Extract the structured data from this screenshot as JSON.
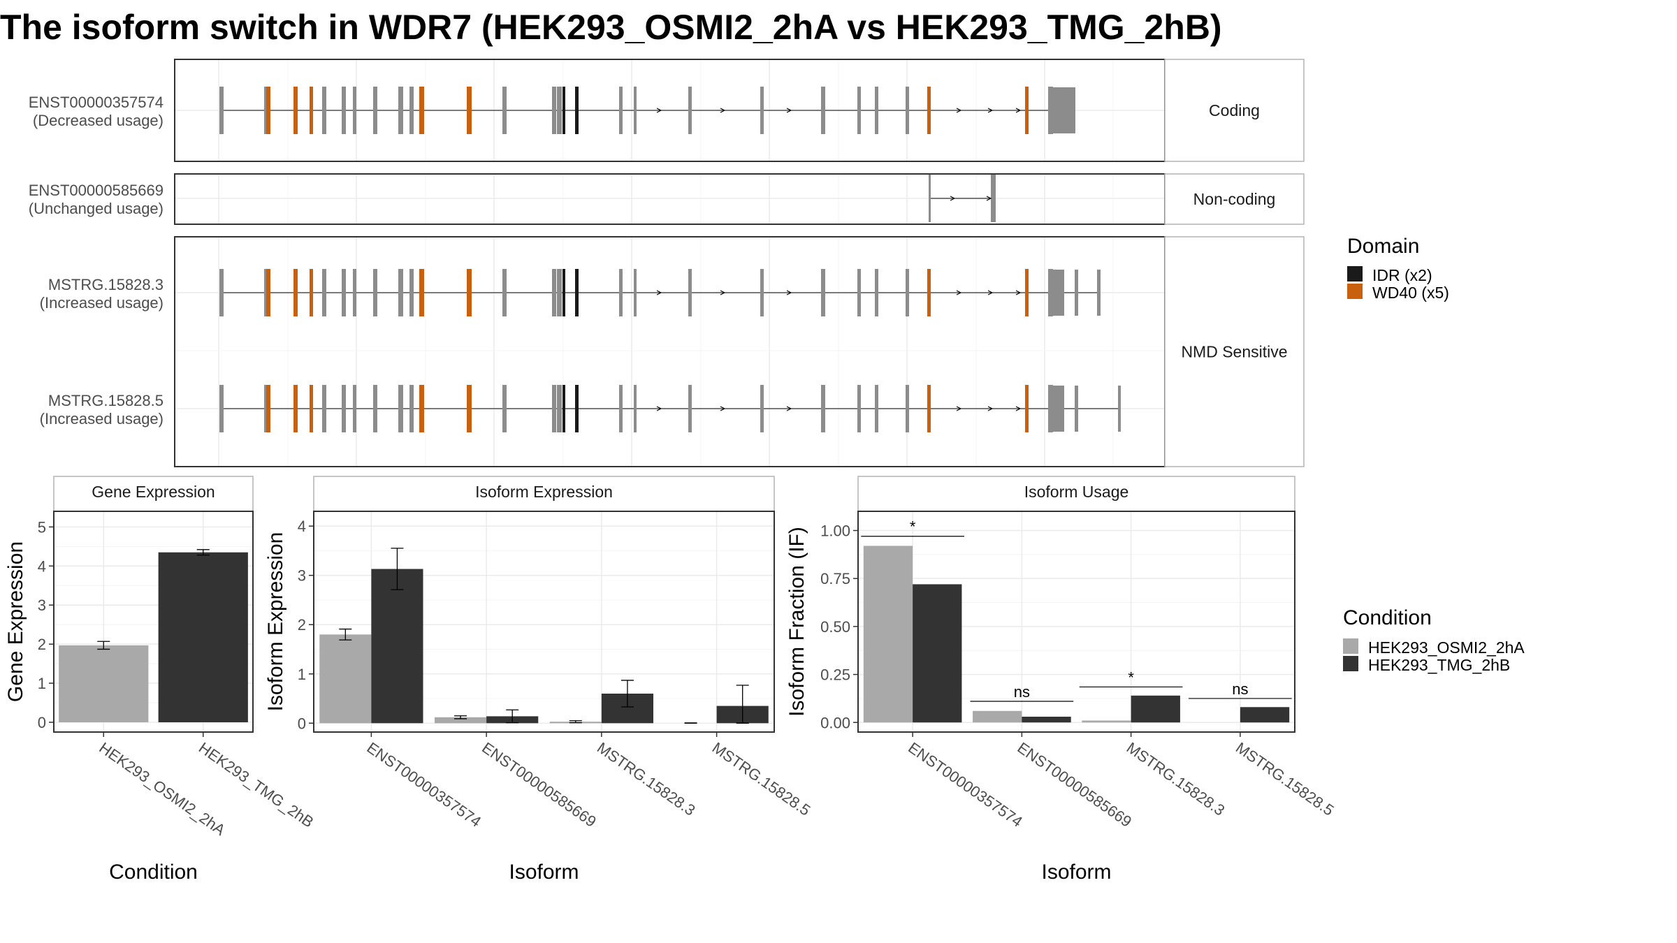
{
  "title": "The isoform switch in WDR7 (HEK293_OSMI2_2hA vs HEK293_TMG_2hB)",
  "colors": {
    "cond_a": "#A9A9A9",
    "cond_b": "#333333",
    "exon": "#8C8C8C",
    "idr": "#1A1A1A",
    "wd40": "#C8600E",
    "panel_border": "#333333",
    "strip_border": "#B3B3B3",
    "grid_major": "#EBEBEB",
    "grid_minor": "#F4F4F4",
    "axis_text": "#4D4D4D"
  },
  "legends": {
    "domain_title": "Domain",
    "domain_items": [
      {
        "label": "IDR (x2)",
        "color": "#1A1A1A"
      },
      {
        "label": "WD40 (x5)",
        "color": "#C8600E"
      }
    ],
    "condition_title": "Condition",
    "condition_items": [
      {
        "label": "HEK293_OSMI2_2hA",
        "color": "#A9A9A9"
      },
      {
        "label": "HEK293_TMG_2hB",
        "color": "#333333"
      }
    ]
  },
  "structure": {
    "groups": [
      {
        "label": "Coding",
        "isoforms": [
          {
            "id": "ENST00000357574",
            "note": "(Decreased usage)",
            "variant": "full",
            "tail": "coding"
          }
        ]
      },
      {
        "label": "Non-coding",
        "isoforms": [
          {
            "id": "ENST00000585669",
            "note": "(Unchanged usage)",
            "variant": "short"
          }
        ]
      },
      {
        "label": "NMD Sensitive",
        "isoforms": [
          {
            "id": "MSTRG.15828.3",
            "note": "(Increased usage)",
            "variant": "full",
            "tail": "nmd3"
          },
          {
            "id": "MSTRG.15828.5",
            "note": "(Increased usage)",
            "variant": "full",
            "tail": "nmd5"
          }
        ]
      }
    ]
  },
  "chart_data": [
    {
      "type": "bar",
      "title": "Gene Expression",
      "xlabel": "Condition",
      "ylabel": "Gene Expression",
      "ylim": [
        -0.25,
        5.4
      ],
      "yticks": [
        0,
        1,
        2,
        3,
        4,
        5
      ],
      "categories": [
        "HEK293_OSMI2_2hA",
        "HEK293_TMG_2hB"
      ],
      "values": [
        1.97,
        4.35
      ],
      "errors": [
        0.1,
        0.07
      ],
      "colors": [
        "#A9A9A9",
        "#333333"
      ]
    },
    {
      "type": "bar",
      "title": "Isoform Expression",
      "xlabel": "Isoform",
      "ylabel": "Isoform Expression",
      "ylim": [
        -0.18,
        4.3
      ],
      "yticks": [
        0,
        1,
        2,
        3,
        4
      ],
      "categories": [
        "ENST00000357574",
        "ENST00000585669",
        "MSTRG.15828.3",
        "MSTRG.15828.5"
      ],
      "series": [
        {
          "name": "HEK293_OSMI2_2hA",
          "values": [
            1.8,
            0.12,
            0.03,
            0.0
          ],
          "errors": [
            0.11,
            0.03,
            0.02,
            0.005
          ]
        },
        {
          "name": "HEK293_TMG_2hB",
          "values": [
            3.13,
            0.14,
            0.6,
            0.35
          ],
          "errors": [
            0.42,
            0.13,
            0.27,
            0.42
          ]
        }
      ]
    },
    {
      "type": "bar",
      "title": "Isoform Usage",
      "xlabel": "Isoform",
      "ylabel": "Isoform Fraction (IF)",
      "ylim": [
        -0.05,
        1.1
      ],
      "yticks": [
        0,
        0.25,
        0.5,
        0.75,
        1.0
      ],
      "ytick_labels": [
        "0.00",
        "0.25",
        "0.50",
        "0.75",
        "1.00"
      ],
      "categories": [
        "ENST00000357574",
        "ENST00000585669",
        "MSTRG.15828.3",
        "MSTRG.15828.5"
      ],
      "series": [
        {
          "name": "HEK293_OSMI2_2hA",
          "values": [
            0.92,
            0.06,
            0.01,
            0.0
          ]
        },
        {
          "name": "HEK293_TMG_2hB",
          "values": [
            0.72,
            0.03,
            0.14,
            0.08
          ]
        }
      ],
      "significance": [
        "*",
        "ns",
        "*",
        "ns"
      ],
      "significance_y": [
        0.97,
        0.11,
        0.185,
        0.125
      ]
    }
  ]
}
